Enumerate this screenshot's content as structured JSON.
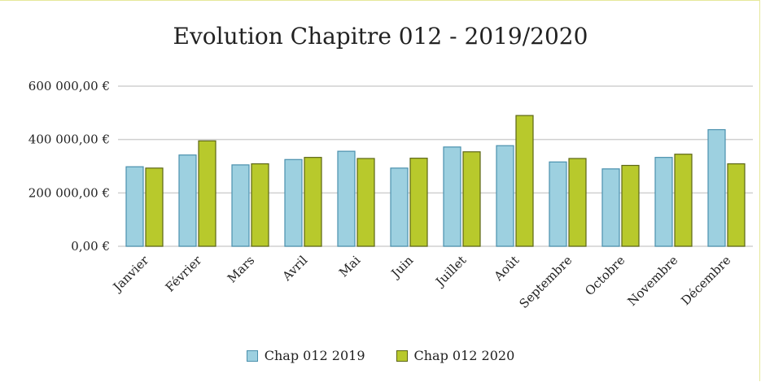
{
  "chart_data": {
    "type": "bar",
    "title": "Evolution Chapitre 012 - 2019/2020",
    "categories": [
      "Janvier",
      "Février",
      "Mars",
      "Avril",
      "Mai",
      "Juin",
      "Juillet",
      "Août",
      "Septembre",
      "Octobre",
      "Novembre",
      "Décembre"
    ],
    "series": [
      {
        "name": "Chap 012 2019",
        "color": "#9dd0e0",
        "stroke": "#4a90ad",
        "values": [
          298000,
          342000,
          305000,
          325000,
          356000,
          293000,
          372000,
          377000,
          316000,
          290000,
          333000,
          437000
        ]
      },
      {
        "name": "Chap 012 2020",
        "color": "#b8c92c",
        "stroke": "#5c6616",
        "values": [
          293000,
          395000,
          309000,
          333000,
          329000,
          330000,
          354000,
          490000,
          329000,
          303000,
          345000,
          309000
        ]
      }
    ],
    "yticks": [
      "0,00 €",
      "200 000,00 €",
      "400 000,00 €",
      "600 000,00 €"
    ],
    "ytick_values": [
      0,
      200000,
      400000,
      600000
    ],
    "ylim": [
      0,
      600000
    ],
    "grid": true,
    "legend_position": "bottom",
    "xlabel": "",
    "ylabel": ""
  }
}
